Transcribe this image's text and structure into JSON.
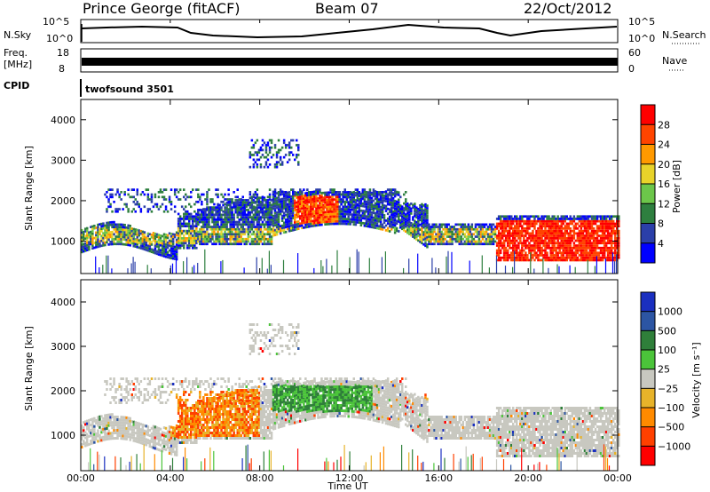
{
  "header": {
    "station": "Prince George (fitACF)",
    "beam": "Beam 07",
    "date": "22/Oct/2012"
  },
  "strips": {
    "nsky_label": "N.Sky",
    "nsearch_label": "N.Search",
    "nsky_ticks": [
      "10^5",
      "10^0"
    ],
    "nsearch_ticks": [
      "10^5",
      "10^0"
    ],
    "freq_label_1": "Freq.",
    "freq_label_2": "[MHz]",
    "freq_ticks": [
      "18",
      "8"
    ],
    "nave_label": "Nave",
    "nave_ticks": [
      "60",
      "0"
    ],
    "cpid_label": "CPID",
    "cpid_value": "twofsound 3501"
  },
  "colors": {
    "power": [
      "#0000ff",
      "#2b3fa9",
      "#2e7f3f",
      "#6cc64a",
      "#e8d32a",
      "#ff9900",
      "#ff4400",
      "#ff0000"
    ],
    "velocity": [
      "#1a2fc0",
      "#2c55a3",
      "#2f7f3a",
      "#4bc43a",
      "#c8c8c0",
      "#e7b32a",
      "#ff8a00",
      "#ff4000",
      "#ff0000"
    ]
  },
  "chart_data": [
    {
      "type": "heatmap",
      "ylabel": "Slant Range [km]",
      "y_ticks": [
        1000,
        2000,
        3000,
        4000
      ],
      "ylim": [
        200,
        4500
      ],
      "xlim": [
        0,
        24
      ],
      "x_ticks": [
        "00:00",
        "04:00",
        "08:00",
        "12:00",
        "16:00",
        "20:00",
        "00:00"
      ],
      "colorbar": {
        "label": "Power [dB]",
        "ticks": [
          "28",
          "24",
          "20",
          "16",
          "12",
          "8",
          "4"
        ]
      }
    },
    {
      "type": "heatmap",
      "ylabel": "Slant Range [km]",
      "y_ticks": [
        1000,
        2000,
        3000,
        4000
      ],
      "ylim": [
        200,
        4500
      ],
      "xlim": [
        0,
        24
      ],
      "x_ticks": [
        "00:00",
        "04:00",
        "08:00",
        "12:00",
        "16:00",
        "20:00",
        "00:00"
      ],
      "xlabel": "Time UT",
      "colorbar": {
        "label": "Velocity [m s⁻¹]",
        "ticks": [
          "1000",
          "500",
          "100",
          "25",
          "−25",
          "−100",
          "−500",
          "−1000"
        ]
      }
    }
  ]
}
